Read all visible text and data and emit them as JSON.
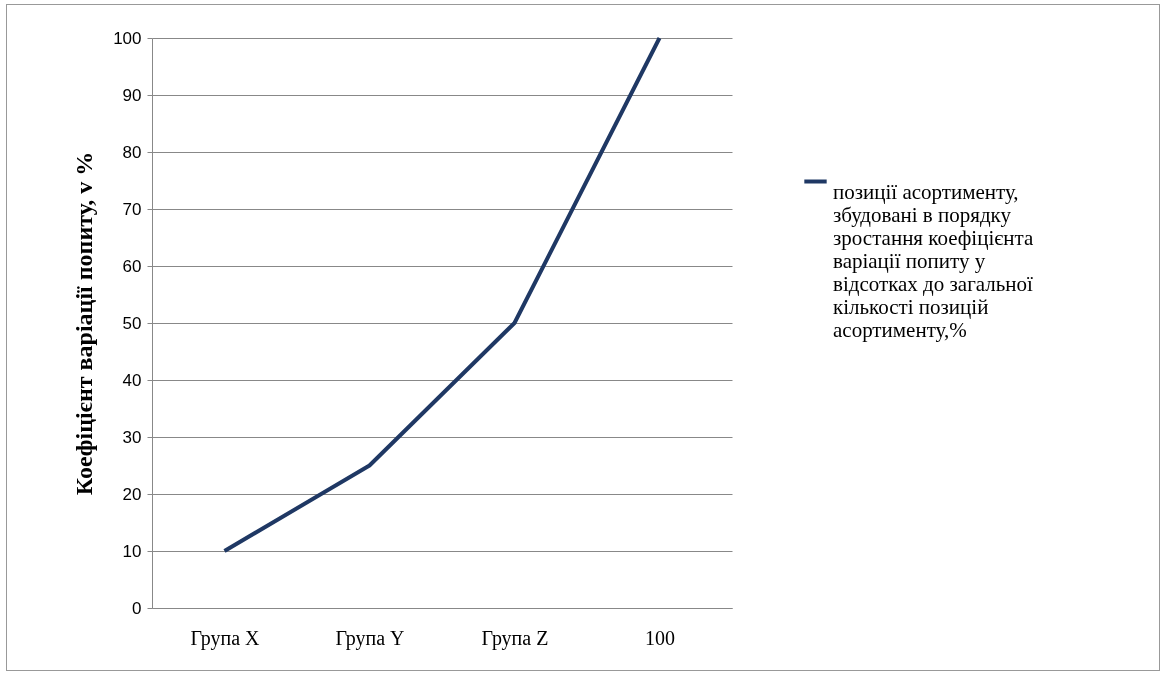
{
  "chart_data": {
    "type": "line",
    "ylabel": "Коефіцієнт варіації попиту, v %",
    "categories": [
      "Група X",
      "Група Y",
      "Група Z",
      "100"
    ],
    "series": [
      {
        "name": "позиції асортименту, збудовані в порядку зростання коефіцієнта варіації попиту у відсотках до загальної кількості позицій асортименту,%",
        "color": "#1f3864",
        "values": [
          10,
          25,
          50,
          100
        ]
      }
    ],
    "ylim": [
      0,
      100
    ],
    "yticks": [
      0,
      10,
      20,
      30,
      40,
      50,
      60,
      70,
      80,
      90,
      100
    ],
    "grid": "y",
    "legend": "right",
    "marker": "none",
    "line_style": "solid"
  }
}
